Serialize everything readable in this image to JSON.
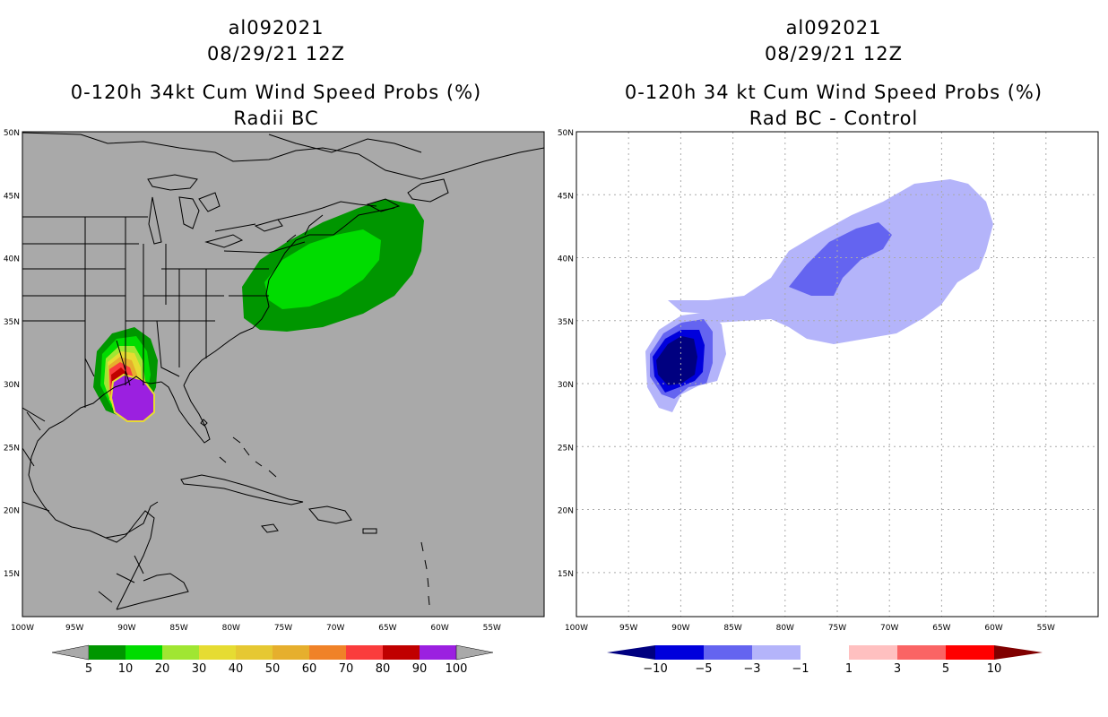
{
  "left_panel": {
    "storm_id": "al092021",
    "datetime": "08/29/21 12Z",
    "title": "0-120h 34kt Cum Wind Speed Probs (%)",
    "subtitle": "Radii BC",
    "background_color": "#a9a9a9",
    "colorbar": {
      "colors": [
        "#009600",
        "#00dc00",
        "#a0e632",
        "#e6dc32",
        "#e6c832",
        "#e6af2d",
        "#f08228",
        "#fa3c3c",
        "#c00000",
        "#9b20e0"
      ],
      "labels": [
        "5",
        "10",
        "20",
        "30",
        "40",
        "50",
        "60",
        "70",
        "80",
        "90",
        "100"
      ],
      "end_arrow_color": "#a9a9a9"
    }
  },
  "right_panel": {
    "storm_id": "al092021",
    "datetime": "08/29/21 12Z",
    "title": "0-120h 34 kt Cum Wind Speed Probs (%)",
    "subtitle": "Rad BC - Control",
    "background_color": "#ffffff",
    "colorbar": {
      "colors": [
        "#0000dc",
        "#6464f0",
        "#b4b4fa",
        "#ffffff",
        "#ffc0c0",
        "#fa6464",
        "#ff0000"
      ],
      "left_arrow_color": "#000080",
      "right_arrow_color": "#800000",
      "labels": [
        "−10",
        "−5",
        "−3",
        "−1",
        "1",
        "3",
        "5",
        "10"
      ]
    }
  },
  "axes": {
    "lat_labels": [
      "50N",
      "45N",
      "40N",
      "35N",
      "30N",
      "25N",
      "20N",
      "15N"
    ],
    "lon_labels": [
      "100W",
      "95W",
      "90W",
      "85W",
      "80W",
      "75W",
      "70W",
      "65W",
      "60W",
      "55W"
    ],
    "lat_range": [
      11.5,
      50
    ],
    "lon_range": [
      -100,
      -50
    ]
  },
  "icons": {
    "coastline": "coastline-outline",
    "state_borders": "state-border-lines"
  }
}
